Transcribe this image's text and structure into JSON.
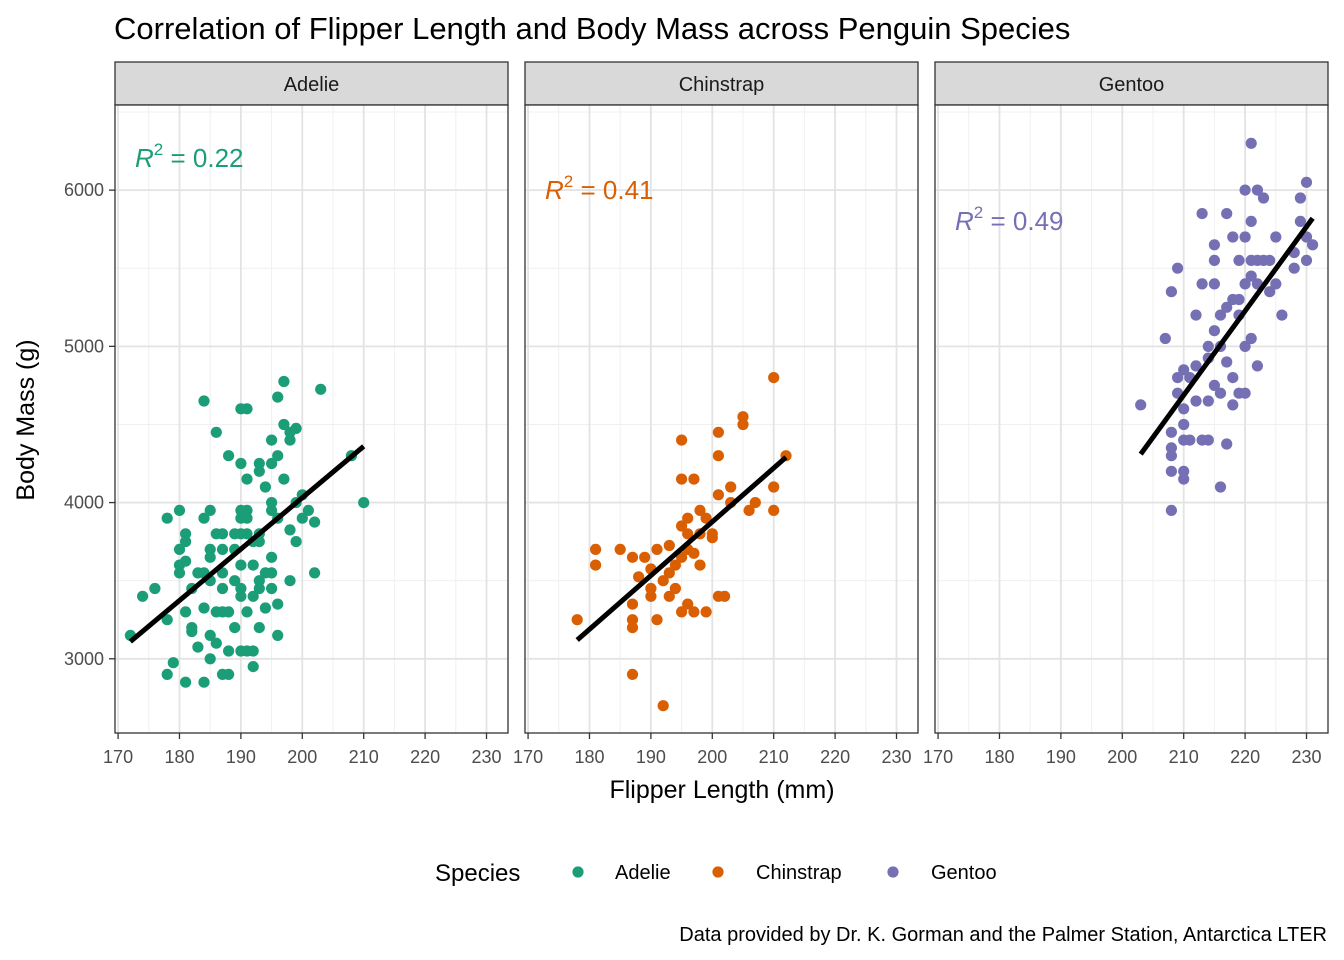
{
  "chart_data": {
    "type": "scatter",
    "title": "Correlation of Flipper Length and Body Mass across Penguin Species",
    "xlabel": "Flipper Length (mm)",
    "ylabel": "Body Mass (g)",
    "caption": "Data provided by Dr. K. Gorman and the Palmer Station, Antarctica LTER",
    "legend_title": "Species",
    "legend_position": "bottom",
    "grid": true,
    "xlim": [
      169.5,
      233.5
    ],
    "ylim": [
      2525,
      6545
    ],
    "x_ticks": [
      170,
      180,
      190,
      200,
      210,
      220,
      230
    ],
    "y_ticks": [
      3000,
      4000,
      5000,
      6000
    ],
    "panels": [
      {
        "species": "Adelie",
        "color": "#1b9e77",
        "r2": "0.22",
        "fit": {
          "x": [
            172,
            210
          ],
          "y": [
            3110,
            4360
          ]
        },
        "points": [
          [
            172,
            3150
          ],
          [
            174,
            3400
          ],
          [
            176,
            3450
          ],
          [
            178,
            3900
          ],
          [
            178,
            3250
          ],
          [
            178,
            2900
          ],
          [
            179,
            2975
          ],
          [
            180,
            3950
          ],
          [
            180,
            3700
          ],
          [
            180,
            3550
          ],
          [
            180,
            3600
          ],
          [
            181,
            3750
          ],
          [
            181,
            3800
          ],
          [
            181,
            3300
          ],
          [
            181,
            2850
          ],
          [
            181,
            3625
          ],
          [
            182,
            3200
          ],
          [
            182,
            3175
          ],
          [
            182,
            3450
          ],
          [
            183,
            3075
          ],
          [
            183,
            3550
          ],
          [
            184,
            3900
          ],
          [
            184,
            4650
          ],
          [
            184,
            3325
          ],
          [
            184,
            3550
          ],
          [
            184,
            2850
          ],
          [
            185,
            3950
          ],
          [
            185,
            3700
          ],
          [
            185,
            3650
          ],
          [
            185,
            3150
          ],
          [
            185,
            3000
          ],
          [
            185,
            3500
          ],
          [
            186,
            4450
          ],
          [
            186,
            3800
          ],
          [
            186,
            3100
          ],
          [
            186,
            3300
          ],
          [
            187,
            3800
          ],
          [
            187,
            3450
          ],
          [
            187,
            3550
          ],
          [
            187,
            3300
          ],
          [
            187,
            2900
          ],
          [
            187,
            3700
          ],
          [
            188,
            4300
          ],
          [
            188,
            3050
          ],
          [
            188,
            2900
          ],
          [
            188,
            3300
          ],
          [
            189,
            3800
          ],
          [
            189,
            3500
          ],
          [
            189,
            3200
          ],
          [
            189,
            3700
          ],
          [
            190,
            4600
          ],
          [
            190,
            3450
          ],
          [
            190,
            3950
          ],
          [
            190,
            3900
          ],
          [
            190,
            4250
          ],
          [
            190,
            3400
          ],
          [
            190,
            3050
          ],
          [
            190,
            3600
          ],
          [
            190,
            3800
          ],
          [
            191,
            4600
          ],
          [
            191,
            3950
          ],
          [
            191,
            3800
          ],
          [
            191,
            3300
          ],
          [
            191,
            3050
          ],
          [
            191,
            3900
          ],
          [
            191,
            4150
          ],
          [
            192,
            3050
          ],
          [
            192,
            3400
          ],
          [
            192,
            3750
          ],
          [
            192,
            3600
          ],
          [
            192,
            2950
          ],
          [
            193,
            3800
          ],
          [
            193,
            4250
          ],
          [
            193,
            3500
          ],
          [
            193,
            3450
          ],
          [
            193,
            3200
          ],
          [
            193,
            3750
          ],
          [
            193,
            4200
          ],
          [
            194,
            4100
          ],
          [
            194,
            3325
          ],
          [
            194,
            3550
          ],
          [
            195,
            4250
          ],
          [
            195,
            3450
          ],
          [
            195,
            3550
          ],
          [
            195,
            3950
          ],
          [
            195,
            4400
          ],
          [
            195,
            4000
          ],
          [
            195,
            3650
          ],
          [
            196,
            4675
          ],
          [
            196,
            3900
          ],
          [
            196,
            4300
          ],
          [
            196,
            3350
          ],
          [
            196,
            3150
          ],
          [
            197,
            4775
          ],
          [
            197,
            4500
          ],
          [
            197,
            4150
          ],
          [
            198,
            4400
          ],
          [
            198,
            3500
          ],
          [
            198,
            3825
          ],
          [
            198,
            4450
          ],
          [
            199,
            4475
          ],
          [
            199,
            3750
          ],
          [
            199,
            4000
          ],
          [
            200,
            3900
          ],
          [
            200,
            4050
          ],
          [
            201,
            3950
          ],
          [
            202,
            3875
          ],
          [
            202,
            3550
          ],
          [
            203,
            4725
          ],
          [
            208,
            4300
          ],
          [
            210,
            4000
          ]
        ]
      },
      {
        "species": "Chinstrap",
        "color": "#d95f02",
        "r2": "0.41",
        "fit": {
          "x": [
            178,
            212
          ],
          "y": [
            3120,
            4290
          ]
        },
        "points": [
          [
            178,
            3250
          ],
          [
            181,
            3600
          ],
          [
            181,
            3700
          ],
          [
            185,
            3700
          ],
          [
            187,
            3650
          ],
          [
            187,
            3250
          ],
          [
            187,
            3200
          ],
          [
            187,
            2900
          ],
          [
            187,
            3350
          ],
          [
            188,
            3525
          ],
          [
            189,
            3650
          ],
          [
            190,
            3450
          ],
          [
            190,
            3400
          ],
          [
            190,
            3575
          ],
          [
            191,
            3700
          ],
          [
            191,
            3250
          ],
          [
            192,
            3500
          ],
          [
            192,
            2700
          ],
          [
            193,
            3550
          ],
          [
            193,
            3400
          ],
          [
            193,
            3725
          ],
          [
            194,
            3600
          ],
          [
            194,
            3450
          ],
          [
            195,
            4400
          ],
          [
            195,
            4150
          ],
          [
            195,
            3300
          ],
          [
            195,
            3850
          ],
          [
            195,
            3650
          ],
          [
            196,
            3700
          ],
          [
            196,
            3800
          ],
          [
            196,
            3350
          ],
          [
            196,
            3900
          ],
          [
            197,
            3300
          ],
          [
            197,
            4150
          ],
          [
            197,
            3675
          ],
          [
            198,
            3950
          ],
          [
            198,
            3800
          ],
          [
            198,
            3600
          ],
          [
            199,
            3900
          ],
          [
            199,
            3300
          ],
          [
            200,
            3775
          ],
          [
            200,
            3800
          ],
          [
            201,
            4450
          ],
          [
            201,
            4300
          ],
          [
            201,
            4050
          ],
          [
            201,
            3400
          ],
          [
            202,
            3400
          ],
          [
            203,
            4100
          ],
          [
            203,
            4000
          ],
          [
            205,
            4550
          ],
          [
            205,
            4500
          ],
          [
            206,
            3950
          ],
          [
            207,
            4000
          ],
          [
            210,
            4800
          ],
          [
            210,
            4100
          ],
          [
            210,
            3950
          ],
          [
            212,
            4300
          ]
        ]
      },
      {
        "species": "Gentoo",
        "color": "#7570b3",
        "r2": "0.49",
        "fit": {
          "x": [
            203,
            231
          ],
          "y": [
            4310,
            5820
          ]
        },
        "points": [
          [
            203,
            4625
          ],
          [
            207,
            5050
          ],
          [
            208,
            3950
          ],
          [
            208,
            4200
          ],
          [
            208,
            4300
          ],
          [
            208,
            4350
          ],
          [
            208,
            4450
          ],
          [
            208,
            5350
          ],
          [
            209,
            4700
          ],
          [
            209,
            4800
          ],
          [
            209,
            5500
          ],
          [
            210,
            4400
          ],
          [
            210,
            4600
          ],
          [
            210,
            4850
          ],
          [
            210,
            4150
          ],
          [
            210,
            4200
          ],
          [
            210,
            4500
          ],
          [
            211,
            4800
          ],
          [
            211,
            4400
          ],
          [
            212,
            5200
          ],
          [
            212,
            4875
          ],
          [
            212,
            4650
          ],
          [
            213,
            4400
          ],
          [
            213,
            5850
          ],
          [
            213,
            5400
          ],
          [
            214,
            4650
          ],
          [
            214,
            4400
          ],
          [
            214,
            4925
          ],
          [
            214,
            5000
          ],
          [
            215,
            5650
          ],
          [
            215,
            5550
          ],
          [
            215,
            5400
          ],
          [
            215,
            4750
          ],
          [
            215,
            5100
          ],
          [
            216,
            5200
          ],
          [
            216,
            4700
          ],
          [
            216,
            4100
          ],
          [
            216,
            5000
          ],
          [
            217,
            5850
          ],
          [
            217,
            4375
          ],
          [
            217,
            5250
          ],
          [
            217,
            4900
          ],
          [
            218,
            5700
          ],
          [
            218,
            5300
          ],
          [
            218,
            4800
          ],
          [
            218,
            4625
          ],
          [
            219,
            5550
          ],
          [
            219,
            5200
          ],
          [
            219,
            5300
          ],
          [
            219,
            4700
          ],
          [
            220,
            5400
          ],
          [
            220,
            5700
          ],
          [
            220,
            6000
          ],
          [
            220,
            5000
          ],
          [
            220,
            4700
          ],
          [
            221,
            5800
          ],
          [
            221,
            5550
          ],
          [
            221,
            5450
          ],
          [
            221,
            5050
          ],
          [
            221,
            6300
          ],
          [
            222,
            5400
          ],
          [
            222,
            5550
          ],
          [
            222,
            6000
          ],
          [
            222,
            4875
          ],
          [
            223,
            5950
          ],
          [
            223,
            5550
          ],
          [
            224,
            5550
          ],
          [
            224,
            5350
          ],
          [
            225,
            5700
          ],
          [
            225,
            5400
          ],
          [
            226,
            5200
          ],
          [
            228,
            5500
          ],
          [
            228,
            5600
          ],
          [
            229,
            5950
          ],
          [
            229,
            5800
          ],
          [
            230,
            6050
          ],
          [
            230,
            5700
          ],
          [
            230,
            5550
          ],
          [
            231,
            5650
          ]
        ]
      }
    ]
  }
}
